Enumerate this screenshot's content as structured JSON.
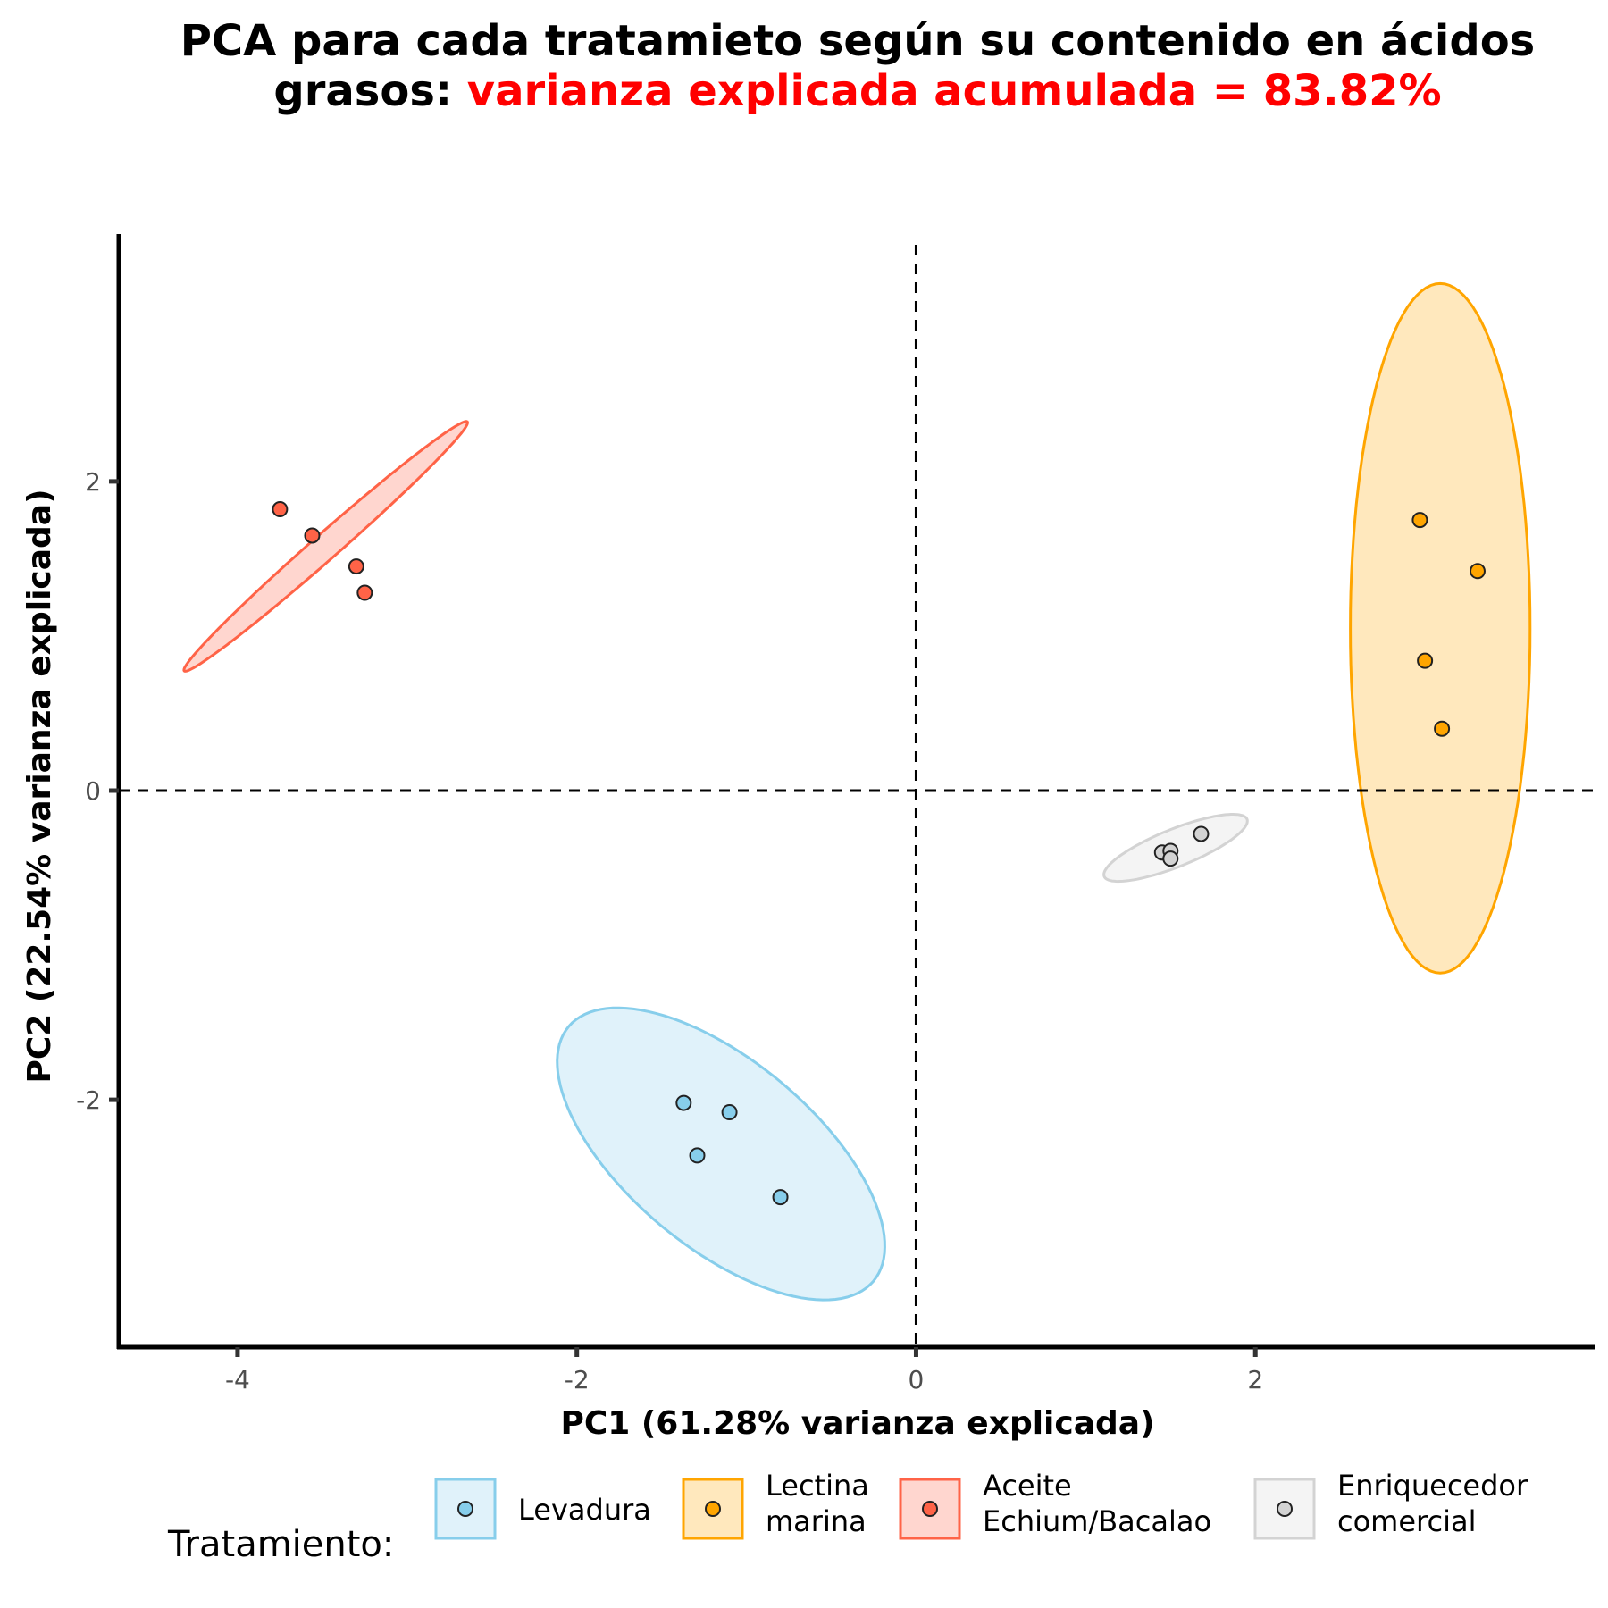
{
  "chart_data": {
    "type": "scatter",
    "title_line1": "PCA para cada tratamieto según su contenido en ácidos",
    "title_line2_black": "grasos: ",
    "title_line2_red": "varianza explicada acumulada = 83.82%",
    "xlabel": "PC1 (61.28% varianza explicada)",
    "ylabel": "PC2 (22.54% varianza explicada)",
    "xlim": [
      -4.7,
      4
    ],
    "ylim": [
      -3.6,
      3.6
    ],
    "xticks": [
      -4,
      -2,
      0,
      2
    ],
    "yticks": [
      -2,
      0,
      2
    ],
    "reference_lines": {
      "x": 0,
      "y": 0,
      "style": "dashed"
    },
    "grid": false,
    "legend": {
      "title": "Tratamiento:",
      "placement": "bottom"
    },
    "series": [
      {
        "name": "Levadura",
        "legend_lines": [
          "Levadura"
        ],
        "color": "#87ceeb",
        "points": [
          [
            -1.37,
            -2.02
          ],
          [
            -1.1,
            -2.08
          ],
          [
            -1.29,
            -2.36
          ],
          [
            -0.8,
            -2.63
          ]
        ],
        "ellipse": {
          "cx": -1.15,
          "cy": -2.35,
          "a": 1.22,
          "b": 0.58,
          "angle_deg": -44
        }
      },
      {
        "name": "Lectina marina",
        "legend_lines": [
          "Lectina",
          "marina"
        ],
        "color": "#ffa500",
        "points": [
          [
            2.97,
            1.75
          ],
          [
            3.31,
            1.42
          ],
          [
            3.0,
            0.84
          ],
          [
            3.1,
            0.4
          ]
        ],
        "ellipse": {
          "cx": 3.09,
          "cy": 1.05,
          "a": 2.23,
          "b": 0.53,
          "angle_deg": 90
        }
      },
      {
        "name": "Aceite Echium/Bacalao",
        "legend_lines": [
          "Aceite",
          "Echium/Bacalao"
        ],
        "color": "#ff6347",
        "points": [
          [
            -3.75,
            1.82
          ],
          [
            -3.56,
            1.65
          ],
          [
            -3.3,
            1.45
          ],
          [
            -3.25,
            1.28
          ]
        ],
        "ellipse": {
          "cx": -3.48,
          "cy": 1.58,
          "a": 1.16,
          "b": 0.08,
          "angle_deg": 44
        }
      },
      {
        "name": "Enriquecedor comercial",
        "legend_lines": [
          "Enriquecedor",
          "comercial"
        ],
        "color": "#d3d3d3",
        "points": [
          [
            1.45,
            -0.4
          ],
          [
            1.5,
            -0.39
          ],
          [
            1.5,
            -0.44
          ],
          [
            1.68,
            -0.28
          ]
        ],
        "ellipse": {
          "cx": 1.53,
          "cy": -0.37,
          "a": 0.46,
          "b": 0.12,
          "angle_deg": 24
        }
      }
    ]
  }
}
